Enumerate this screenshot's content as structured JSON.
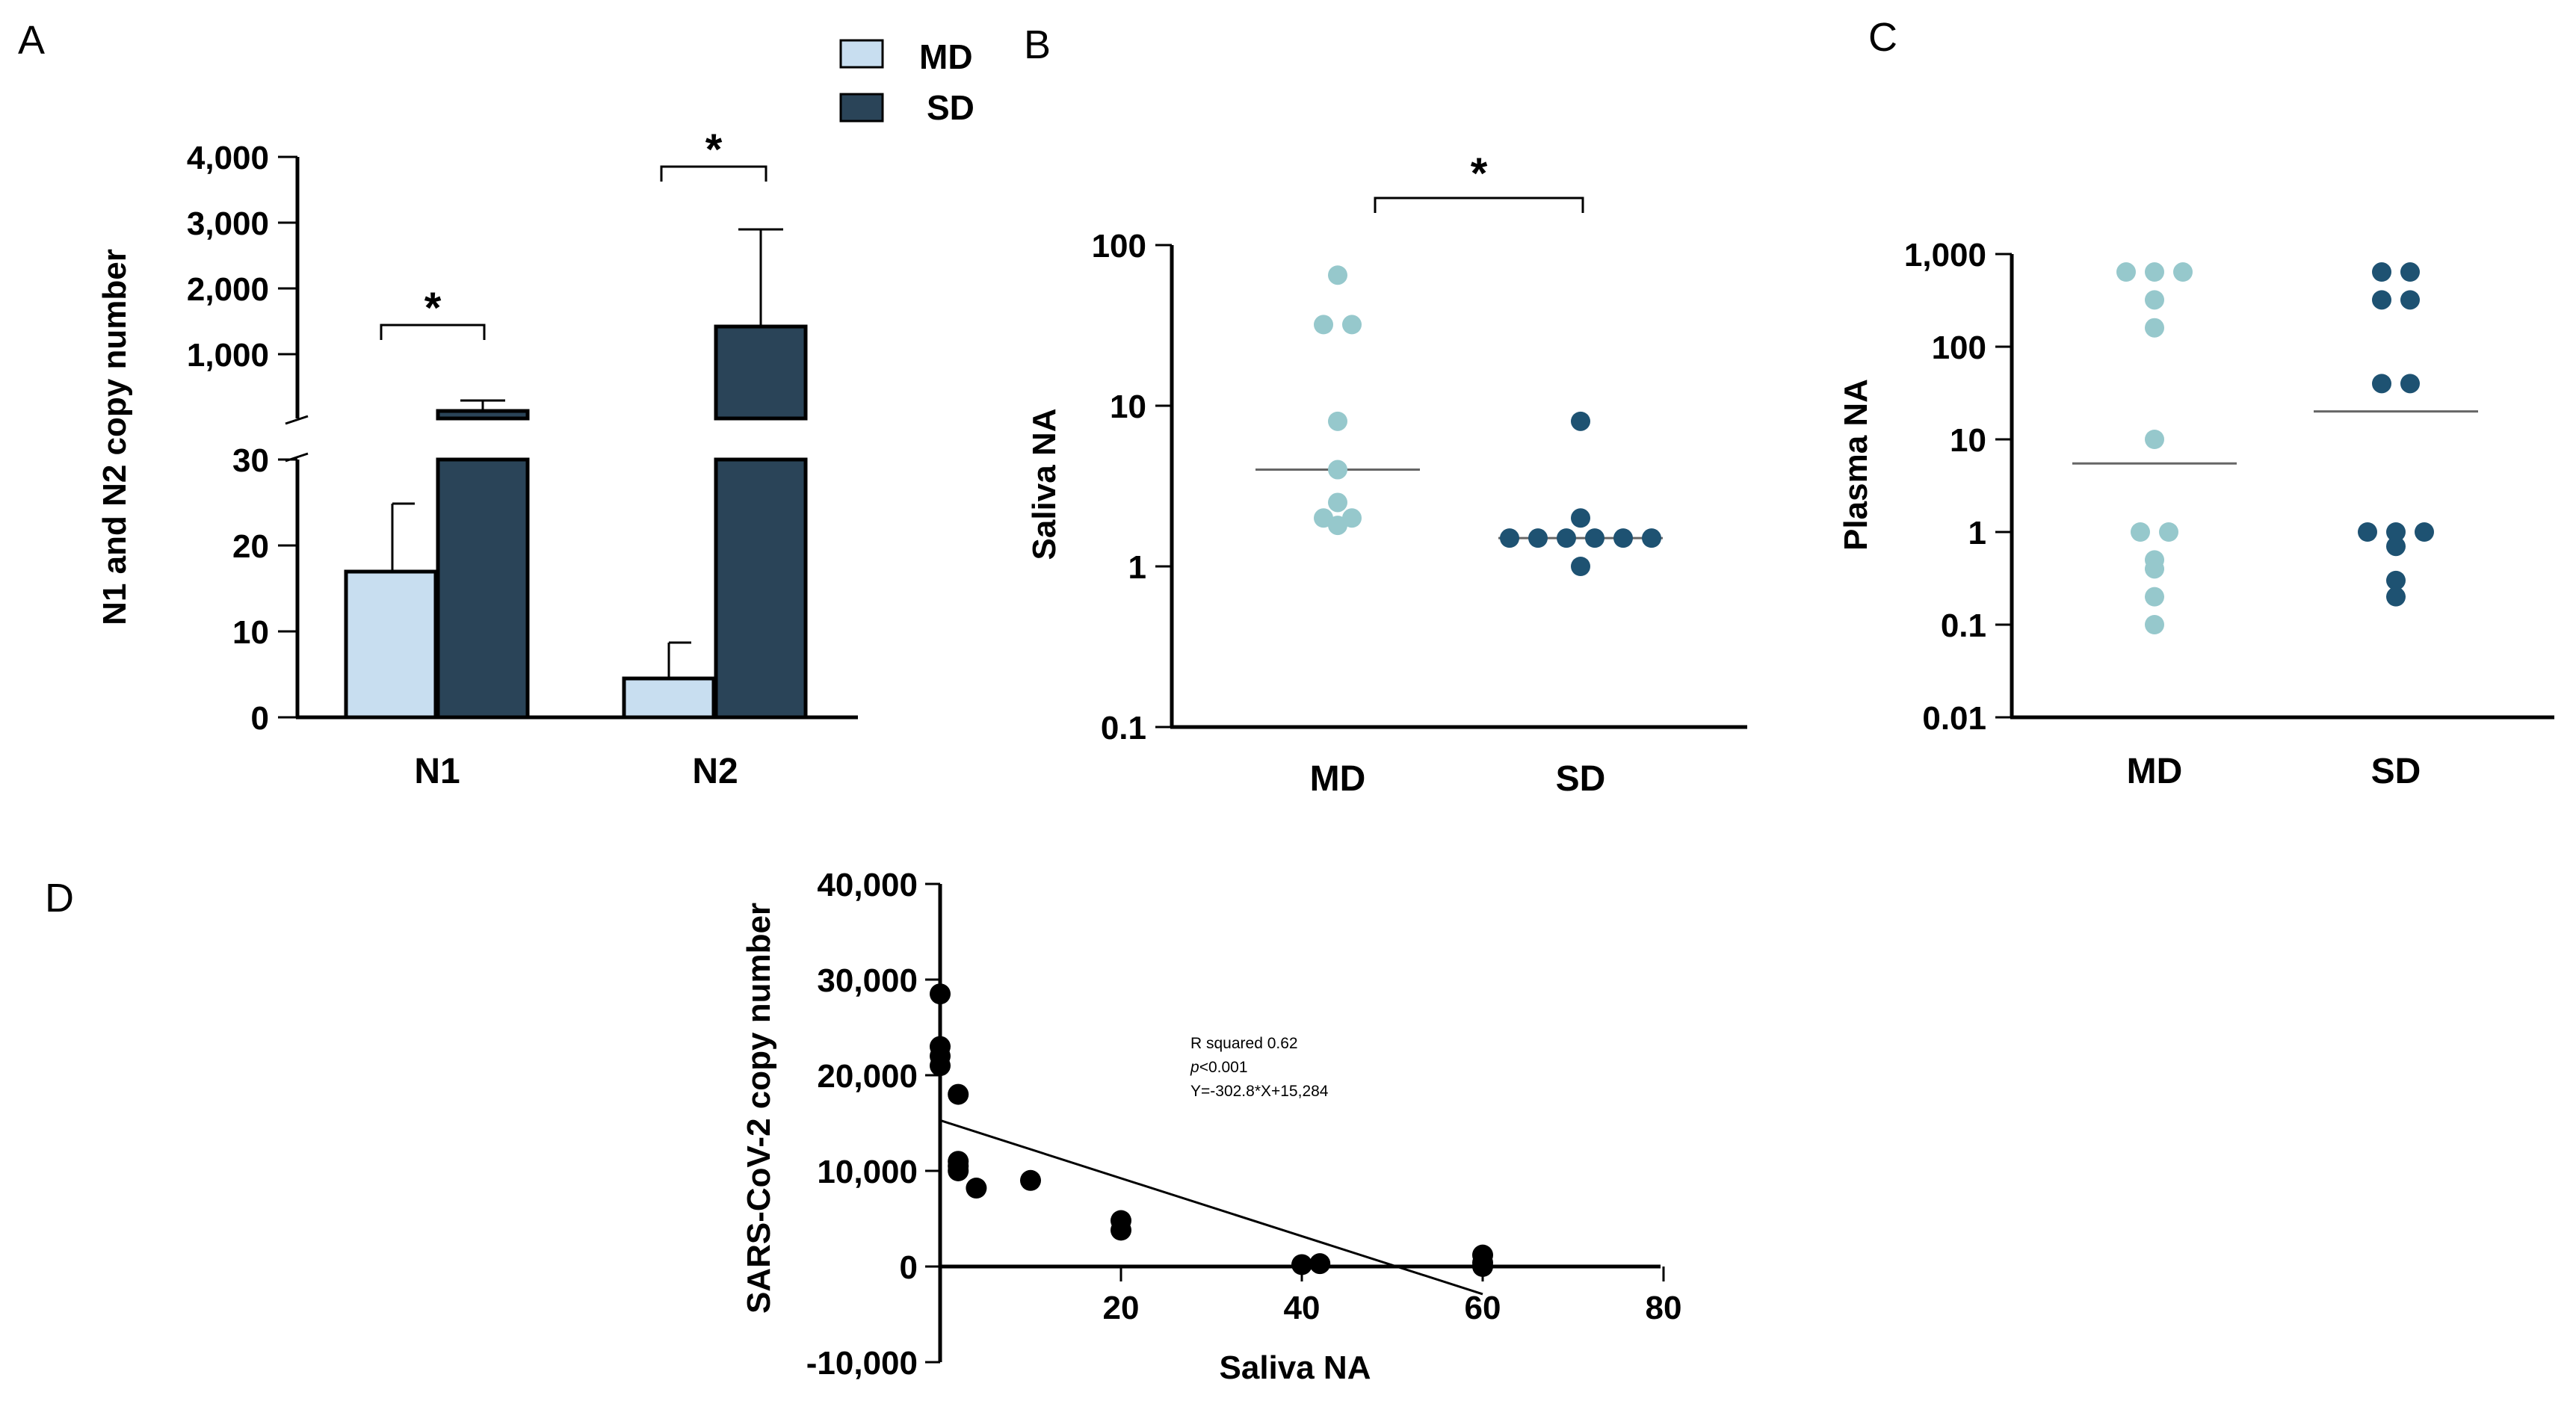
{
  "panel_labels": [
    "A",
    "B",
    "C",
    "D"
  ],
  "colors": {
    "md_bar": "#c8def0",
    "sd_bar": "#2a4458",
    "md_dot": "#96c8cc",
    "sd_dot": "#1e5272",
    "dot_d": "#000000"
  },
  "chart_data": [
    {
      "panel": "A",
      "type": "bar",
      "ylabel": "N1 and N2 copy number",
      "categories": [
        "N1",
        "N2"
      ],
      "legend": [
        "MD",
        "SD"
      ],
      "legend_position": "top",
      "y_axis_break": true,
      "ylim_lower": [
        0,
        30
      ],
      "ylim_upper": [
        0,
        4000
      ],
      "yticks_lower": [
        "0",
        "10",
        "20",
        "30"
      ],
      "yticks_upper": [
        "1,000",
        "2,000",
        "3,000",
        "4,000"
      ],
      "series": [
        {
          "name": "MD",
          "values": [
            17,
            4.5
          ],
          "errors": [
            7.5,
            4
          ]
        },
        {
          "name": "SD",
          "values": [
            100,
            1450
          ],
          "errors": [
            180,
            1450
          ]
        }
      ],
      "significance": [
        "*",
        "*"
      ]
    },
    {
      "panel": "B",
      "type": "scatter",
      "yscale": "log",
      "ylabel": "Saliva NA",
      "categories": [
        "MD",
        "SD"
      ],
      "yticks": [
        "0.1",
        "1",
        "10",
        "100"
      ],
      "series": [
        {
          "name": "MD",
          "values": [
            65,
            32,
            32,
            8,
            2.5,
            1.8,
            2,
            2,
            4
          ],
          "median": 4
        },
        {
          "name": "SD",
          "values": [
            8,
            2,
            1.5,
            1.5,
            1.5,
            1.5,
            1.5,
            1.5,
            1
          ],
          "median": 1.5
        }
      ],
      "significance": "*"
    },
    {
      "panel": "C",
      "type": "scatter",
      "yscale": "log",
      "ylabel": "Plasma NA",
      "categories": [
        "MD",
        "SD"
      ],
      "yticks": [
        "0.01",
        "0.1",
        "1",
        "10",
        "100",
        "1,000"
      ],
      "series": [
        {
          "name": "MD",
          "values": [
            640,
            640,
            640,
            320,
            160,
            10,
            1,
            1,
            0.5,
            0.4,
            0.2,
            0.1
          ],
          "median": 5.5
        },
        {
          "name": "SD",
          "values": [
            640,
            640,
            320,
            320,
            40,
            40,
            1,
            1,
            1,
            0.7,
            0.3,
            0.2
          ],
          "median": 20
        }
      ]
    },
    {
      "panel": "D",
      "type": "scatter",
      "xlabel": "Saliva NA",
      "ylabel": "SARS-CoV-2 copy number",
      "xlim": [
        0,
        80
      ],
      "ylim": [
        -10000,
        40000
      ],
      "xticks": [
        "20",
        "40",
        "60",
        "80"
      ],
      "yticks": [
        "-10,000",
        "0",
        "10,000",
        "20,000",
        "30,000",
        "40,000"
      ],
      "points": [
        [
          0,
          28500
        ],
        [
          0,
          23000
        ],
        [
          0,
          22000
        ],
        [
          0,
          21000
        ],
        [
          2,
          18000
        ],
        [
          2,
          11000
        ],
        [
          2,
          10500
        ],
        [
          2,
          10000
        ],
        [
          4,
          8200
        ],
        [
          10,
          9000
        ],
        [
          20,
          4800
        ],
        [
          20,
          3800
        ],
        [
          40,
          200
        ],
        [
          42,
          300
        ],
        [
          60,
          1200
        ],
        [
          60,
          400
        ],
        [
          60,
          0
        ]
      ],
      "fit": {
        "slope": -302.8,
        "intercept": 15284,
        "x_range": [
          0,
          60
        ]
      },
      "annotation": {
        "r_squared": "R squared  0.62",
        "p_prefix": "p",
        "p_value": "<0.001",
        "equation": "Y=-302.8*X+15,284"
      }
    }
  ]
}
